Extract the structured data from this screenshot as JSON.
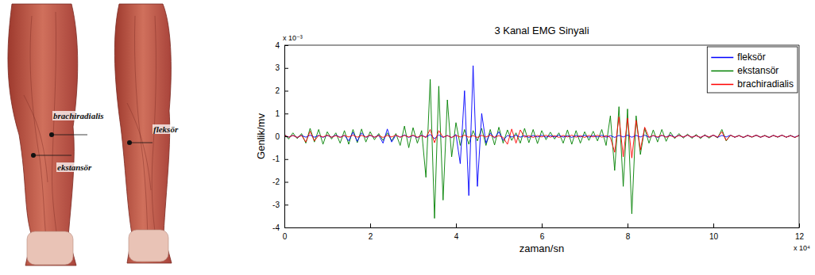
{
  "chart_data": {
    "type": "line",
    "title": "3 Kanal EMG Sinyali",
    "x_label": "zaman/sn",
    "y_label": "Genlik/mv",
    "x_exponent_label": "x 10⁴",
    "y_exponent_label": "x 10⁻³",
    "x": [
      0,
      0.1,
      0.2,
      0.3,
      0.4,
      0.5,
      0.6,
      0.7,
      0.8,
      0.9,
      1,
      1.1,
      1.2,
      1.3,
      1.4,
      1.5,
      1.6,
      1.7,
      1.8,
      1.9,
      2,
      2.1,
      2.2,
      2.3,
      2.4,
      2.5,
      2.6,
      2.7,
      2.8,
      2.9,
      3,
      3.1,
      3.2,
      3.3,
      3.4,
      3.5,
      3.6,
      3.7,
      3.8,
      3.9,
      4,
      4.1,
      4.2,
      4.3,
      4.4,
      4.5,
      4.6,
      4.7,
      4.8,
      4.9,
      5,
      5.1,
      5.2,
      5.3,
      5.4,
      5.5,
      5.6,
      5.7,
      5.8,
      5.9,
      6,
      6.1,
      6.2,
      6.3,
      6.4,
      6.5,
      6.6,
      6.7,
      6.8,
      6.9,
      7,
      7.1,
      7.2,
      7.3,
      7.4,
      7.5,
      7.6,
      7.7,
      7.8,
      7.9,
      8,
      8.1,
      8.2,
      8.3,
      8.4,
      8.5,
      8.6,
      8.7,
      8.8,
      8.9,
      9,
      9.1,
      9.2,
      9.3,
      9.4,
      9.5,
      9.6,
      9.7,
      9.8,
      9.9,
      10,
      10.1,
      10.2,
      10.3,
      10.4,
      10.5,
      10.6,
      10.7,
      10.8,
      10.9,
      11,
      11.1,
      11.2,
      11.3,
      11.4,
      11.5,
      11.6,
      11.7,
      11.8,
      11.9,
      12
    ],
    "series": [
      {
        "name": "fleksör",
        "color": "#0000ff",
        "values": [
          0.05,
          -0.04,
          0.04,
          -0.05,
          0.04,
          -0.04,
          0.05,
          -0.04,
          0.04,
          -0.05,
          0.04,
          -0.04,
          0.05,
          -0.04,
          0.04,
          -0.2,
          0.18,
          -0.22,
          0.15,
          -0.05,
          0.04,
          -0.04,
          0.05,
          -0.3,
          0.32,
          -0.25,
          0.05,
          -0.04,
          0.06,
          -0.05,
          0.04,
          -0.06,
          0.05,
          -0.04,
          0.08,
          -0.1,
          0.06,
          -0.05,
          0.04,
          -0.06,
          0.08,
          -1.2,
          2.0,
          -2.6,
          3.1,
          -2.2,
          1.0,
          -0.3,
          0.15,
          -0.08,
          0.2,
          -0.18,
          0.04,
          -0.03,
          0.05,
          -0.04,
          0.03,
          -0.05,
          0.04,
          -0.03,
          0.05,
          -0.04,
          0.04,
          -0.03,
          0.05,
          -0.04,
          0.03,
          -0.05,
          0.04,
          -0.03,
          0.05,
          -0.04,
          0.04,
          -0.03,
          0.05,
          -0.04,
          0.03,
          -0.05,
          0.04,
          -0.03,
          0.05,
          -0.04,
          0.04,
          -0.03,
          0.05,
          -0.04,
          0.03,
          -0.05,
          0.04,
          -0.03,
          0.05,
          -0.04,
          0.04,
          -0.03,
          0.05,
          -0.04,
          0.03,
          -0.05,
          0.04,
          -0.03,
          0.05,
          -0.04,
          0.04,
          -0.03,
          0.05,
          -0.04,
          0.03,
          -0.05,
          0.04,
          -0.03,
          0.05,
          -0.04,
          0.03,
          -0.05,
          0.04,
          -0.03,
          0.05,
          -0.04,
          0.03,
          -0.04,
          0.04
        ]
      },
      {
        "name": "ekstansör",
        "color": "#008000",
        "values": [
          0.1,
          -0.12,
          0.15,
          -0.1,
          0.12,
          -0.3,
          0.35,
          -0.25,
          0.3,
          -0.35,
          0.2,
          -0.12,
          0.15,
          -0.3,
          0.25,
          -0.35,
          0.3,
          -0.28,
          0.32,
          -0.25,
          0.2,
          -0.15,
          0.12,
          -0.18,
          0.15,
          -0.2,
          0.12,
          -0.4,
          0.45,
          -0.5,
          0.38,
          -0.3,
          0.25,
          -1.8,
          2.5,
          -3.6,
          2.2,
          -2.8,
          1.6,
          -0.9,
          0.6,
          -0.4,
          0.3,
          -0.35,
          0.25,
          -0.2,
          0.35,
          -0.4,
          0.3,
          -0.38,
          0.4,
          -0.3,
          0.28,
          -0.18,
          0.15,
          -0.3,
          0.35,
          -0.28,
          0.3,
          -0.32,
          0.25,
          -0.15,
          0.18,
          -0.12,
          0.15,
          -0.3,
          0.28,
          -0.35,
          0.25,
          -0.3,
          0.2,
          -0.18,
          0.22,
          -0.2,
          0.3,
          -0.4,
          0.9,
          -1.5,
          1.3,
          -2.2,
          1.2,
          -3.4,
          0.9,
          -0.8,
          0.35,
          -0.3,
          0.28,
          -0.25,
          0.3,
          -0.22,
          0.18,
          -0.1,
          0.12,
          -0.08,
          0.1,
          -0.09,
          0.08,
          -0.1,
          0.07,
          -0.08,
          0.06,
          -0.07,
          0.3,
          -0.2,
          0.05,
          -0.04,
          0.04,
          -0.05,
          0.04,
          -0.04,
          0.05,
          -0.04,
          0.04,
          -0.05,
          0.04,
          -0.04,
          0.05,
          -0.04,
          0.04,
          -0.05,
          0.04
        ]
      },
      {
        "name": "brachiradialis",
        "color": "#ff0000",
        "values": [
          0.05,
          -0.04,
          0.04,
          -0.05,
          0.04,
          -0.25,
          0.22,
          -0.2,
          0.04,
          -0.03,
          0.05,
          -0.04,
          0.03,
          -0.05,
          0.04,
          -0.03,
          0.05,
          -0.04,
          0.04,
          -0.03,
          0.05,
          -0.04,
          0.03,
          -0.05,
          0.04,
          -0.03,
          0.05,
          -0.04,
          0.04,
          -0.03,
          0.05,
          -0.04,
          0.03,
          -0.05,
          0.3,
          -0.28,
          0.25,
          -0.04,
          0.03,
          -0.05,
          0.04,
          -0.03,
          0.05,
          -0.04,
          0.03,
          -0.05,
          0.04,
          -0.03,
          0.05,
          -0.04,
          0.03,
          -0.05,
          -0.35,
          0.32,
          -0.3,
          0.28,
          -0.04,
          0.03,
          -0.05,
          0.04,
          -0.03,
          0.05,
          -0.04,
          0.03,
          -0.05,
          0.04,
          -0.03,
          0.05,
          -0.04,
          0.03,
          -0.05,
          0.04,
          -0.03,
          0.05,
          -0.04,
          0.03,
          -0.05,
          -0.7,
          0.85,
          -0.9,
          0.8,
          -0.95,
          0.7,
          -0.6,
          0.4,
          -0.05,
          0.04,
          -0.03,
          0.05,
          -0.04,
          0.03,
          -0.05,
          0.04,
          -0.03,
          0.05,
          -0.04,
          0.03,
          -0.05,
          0.04,
          -0.03,
          0.05,
          -0.04,
          0.2,
          -0.18,
          0.05,
          -0.04,
          0.03,
          -0.05,
          0.04,
          -0.03,
          0.05,
          -0.04,
          0.03,
          -0.05,
          0.04,
          -0.03,
          0.05,
          -0.04,
          0.03,
          -0.05,
          0.04
        ]
      }
    ],
    "xlim": [
      0,
      12
    ],
    "ylim": [
      -4,
      4
    ],
    "xticks": [
      0,
      2,
      4,
      6,
      8,
      10,
      12
    ],
    "yticks": [
      -4,
      -3,
      -2,
      -1,
      0,
      1,
      2,
      3,
      4
    ],
    "legend": "top-right",
    "grid": false
  },
  "illustration": {
    "labels": [
      "brachiradialis",
      "ekstansör",
      "fleksör"
    ]
  }
}
